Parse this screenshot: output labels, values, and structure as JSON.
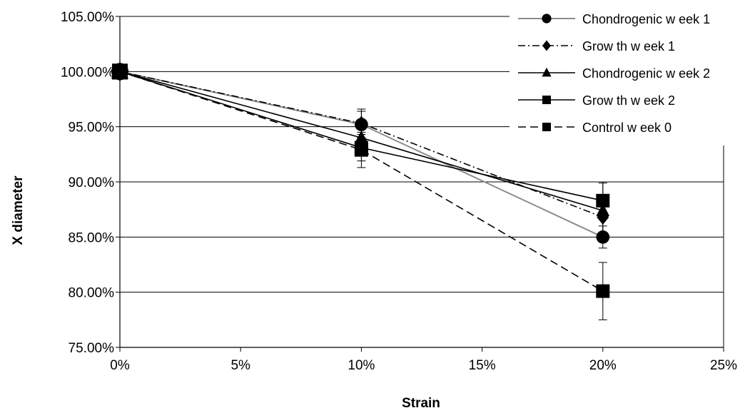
{
  "chart_data": {
    "type": "line",
    "title": "",
    "xlabel": "Strain",
    "ylabel": "X diameter",
    "x_unit": "percent strain",
    "xlim": [
      0,
      25
    ],
    "ylim": [
      75,
      105
    ],
    "x_ticks": [
      0,
      5,
      10,
      15,
      20,
      25
    ],
    "x_tick_labels": [
      "0%",
      "5%",
      "10%",
      "15%",
      "20%",
      "25%"
    ],
    "y_ticks": [
      75,
      80,
      85,
      90,
      95,
      100,
      105
    ],
    "y_tick_labels": [
      "75.00%",
      "80.00%",
      "85.00%",
      "90.00%",
      "95.00%",
      "100.00%",
      "105.00%"
    ],
    "grid": "horizontal major gridlines",
    "legend_position": "top-right",
    "x": [
      0,
      10,
      20
    ],
    "series": [
      {
        "name": "Chondrogenic w eek 1",
        "marker": "circle",
        "line_style": "solid-gray",
        "values": [
          100,
          95.2,
          85.0
        ],
        "error": [
          0,
          1.2,
          1.0
        ]
      },
      {
        "name": "Grow th w eek 1",
        "marker": "diamond",
        "line_style": "dash-dot",
        "values": [
          100,
          95.3,
          86.8
        ],
        "error": [
          0,
          1.3,
          1.5
        ]
      },
      {
        "name": "Chondrogenic w eek 2",
        "marker": "triangle",
        "line_style": "solid",
        "values": [
          100,
          94.0,
          87.4
        ],
        "error": [
          0,
          1.5,
          2.5
        ]
      },
      {
        "name": "Grow th w eek 2",
        "marker": "square",
        "line_style": "solid",
        "values": [
          100,
          93.1,
          88.3
        ],
        "error": [
          0,
          1.2,
          1.7
        ]
      },
      {
        "name": "Control w eek 0",
        "marker": "square",
        "line_style": "dashed",
        "values": [
          100,
          92.9,
          80.1
        ],
        "error": [
          0,
          1.6,
          2.6
        ]
      }
    ]
  }
}
